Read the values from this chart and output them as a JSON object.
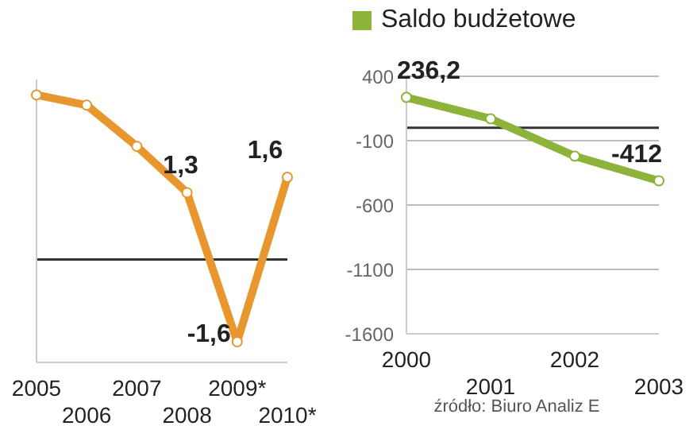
{
  "chart_data": [
    {
      "type": "line",
      "categories": [
        "2005",
        "2006",
        "2007",
        "2008",
        "2009*",
        "2010*"
      ],
      "values": [
        3.2,
        3.0,
        2.2,
        1.3,
        -1.6,
        1.6
      ],
      "color": "#e8962e",
      "value_labels": [
        null,
        null,
        null,
        "1,3",
        "-1,6",
        "1,6"
      ],
      "ylim": [
        -2,
        3.5
      ],
      "tick_labels": "x",
      "marker": "circle",
      "ref_lines": [
        {
          "axis": "y",
          "value": 0,
          "color": "#333333"
        }
      ]
    },
    {
      "type": "line",
      "categories": [
        "2000",
        "2001",
        "2002",
        "2003"
      ],
      "series": [
        {
          "name": "Saldo budżetowe",
          "color": "#8db33a",
          "values": [
            236.2,
            70,
            -220,
            -412
          ],
          "value_labels": [
            "236,2",
            null,
            null,
            "-412"
          ]
        }
      ],
      "ylim": [
        -1600,
        400
      ],
      "yticks": [
        400,
        -100,
        -600,
        -1100,
        -1600
      ],
      "grid": "y",
      "legend": "top left",
      "marker": "circle",
      "ref_lines": [
        {
          "axis": "y",
          "value": 0,
          "color": "#333333"
        }
      ],
      "annotations": [
        "źródło: Biuro Analiz E"
      ]
    }
  ]
}
